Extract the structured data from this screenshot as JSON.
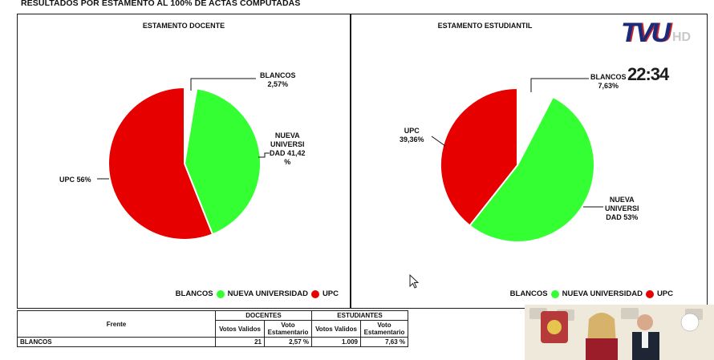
{
  "page_title": "RESULTADOS POR ESTAMENTO AL 100% DE ACTAS COMPUTADAS",
  "colors": {
    "green": "#33ff33",
    "red": "#e60000",
    "blancos": "#ffffff"
  },
  "overlay": {
    "logo": "TVU",
    "logo_suffix": "HD",
    "clock": "22:34"
  },
  "chart_data": [
    {
      "type": "pie",
      "title": "ESTAMENTO DOCENTE",
      "slices": [
        {
          "name": "BLANCOS",
          "value": 2.57,
          "label": [
            "BLANCOS",
            "2,57%"
          ]
        },
        {
          "name": "NUEVA UNIVERSIDAD",
          "value": 41.42,
          "label": [
            "NUEVA",
            "UNIVERSI",
            "DAD 41,42",
            "%"
          ]
        },
        {
          "name": "UPC",
          "value": 56,
          "label": [
            "UPC 56%"
          ]
        }
      ],
      "legend": [
        "BLANCOS",
        "NUEVA UNIVERSIDAD",
        "UPC"
      ],
      "legend_position": "bottom-right"
    },
    {
      "type": "pie",
      "title": "ESTAMENTO ESTUDIANTIL",
      "slices": [
        {
          "name": "BLANCOS",
          "value": 7.63,
          "label": [
            "BLANCOS",
            "7,63%"
          ]
        },
        {
          "name": "NUEVA UNIVERSIDAD",
          "value": 53,
          "label": [
            "NUEVA",
            "UNIVERSI",
            "DAD 53%"
          ]
        },
        {
          "name": "UPC",
          "value": 39.36,
          "label": [
            "UPC",
            "39,36%"
          ]
        }
      ],
      "legend": [
        "BLANCOS",
        "NUEVA UNIVERSIDAD",
        "UPC"
      ],
      "legend_position": "bottom-right"
    }
  ],
  "table": {
    "frente_header": "Frente",
    "docentes_header": "DOCENTES",
    "estudiantes_header": "ESTUDIANTES",
    "sub_validos": "Votos Validos",
    "sub_voto": "Voto Estamentario",
    "rows": [
      {
        "frente": "BLANCOS",
        "doc_validos": "21",
        "doc_pct": "2,57 %",
        "est_validos": "1.009",
        "est_pct": "7,63 %"
      }
    ]
  }
}
